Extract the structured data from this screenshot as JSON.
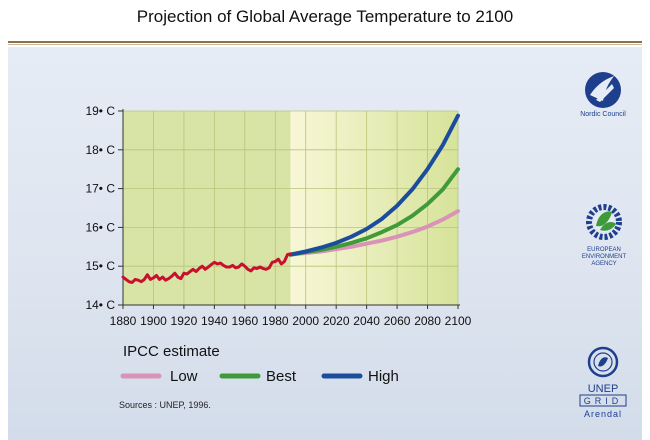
{
  "title": "Projection of Global Average Temperature to 2100",
  "logos": {
    "nordic": {
      "text": "Nordic Council",
      "icon": "nordic-council-swan-icon"
    },
    "eea": {
      "lines": [
        "EUROPEAN",
        "ENVIRONMENT",
        "AGENCY"
      ],
      "icon": "eea-gear-leaf-icon"
    },
    "unep": {
      "line1": "UNEP",
      "line2": "GRID",
      "line3": "Arendal",
      "icon": "un-wreath-icon"
    }
  },
  "colors": {
    "observed": "#c8102e",
    "low": "#d993b9",
    "best": "#3f9a3a",
    "high": "#1c4d9c",
    "plot_bg_history": "#d8e3a6",
    "plot_bg_future_start": "#f8f7d6",
    "plot_bg_future_end": "#d6e39a"
  },
  "chart_data": {
    "type": "line",
    "xlim": [
      1880,
      2100
    ],
    "ylim": [
      14,
      19
    ],
    "x_ticks": [
      1880,
      1900,
      1920,
      1940,
      1960,
      1980,
      2000,
      2020,
      2040,
      2060,
      2080,
      2100
    ],
    "x_tick_labels": [
      "1880",
      "1900",
      "1920",
      "1940",
      "1960",
      "1980",
      "2000",
      "2020",
      "2040",
      "2060",
      "2080",
      "2100"
    ],
    "y_ticks": [
      14,
      15,
      16,
      17,
      18,
      19
    ],
    "y_tick_labels": [
      "14• C",
      "15• C",
      "16• C",
      "17• C",
      "18• C",
      "19• C"
    ],
    "grid": true,
    "observed": {
      "x": [
        1880,
        1882,
        1884,
        1886,
        1888,
        1890,
        1892,
        1894,
        1896,
        1898,
        1900,
        1902,
        1904,
        1906,
        1908,
        1910,
        1912,
        1914,
        1916,
        1918,
        1920,
        1922,
        1924,
        1926,
        1928,
        1930,
        1932,
        1934,
        1936,
        1938,
        1940,
        1942,
        1944,
        1946,
        1948,
        1950,
        1952,
        1954,
        1956,
        1958,
        1960,
        1962,
        1964,
        1966,
        1968,
        1970,
        1972,
        1974,
        1976,
        1978,
        1980,
        1982,
        1984,
        1986,
        1988,
        1990
      ],
      "y": [
        14.72,
        14.66,
        14.6,
        14.58,
        14.66,
        14.64,
        14.6,
        14.66,
        14.78,
        14.66,
        14.7,
        14.76,
        14.66,
        14.72,
        14.64,
        14.68,
        14.74,
        14.82,
        14.72,
        14.68,
        14.82,
        14.8,
        14.86,
        14.92,
        14.86,
        14.94,
        15.0,
        14.92,
        14.98,
        15.04,
        15.1,
        15.06,
        15.08,
        15.02,
        14.98,
        14.98,
        15.02,
        14.96,
        14.98,
        15.06,
        15.0,
        14.92,
        14.88,
        14.96,
        14.94,
        14.98,
        14.94,
        14.92,
        14.96,
        15.1,
        15.12,
        15.18,
        15.06,
        15.12,
        15.3,
        15.32
      ]
    },
    "series": [
      {
        "name": "Low",
        "x": [
          1990,
          2000,
          2010,
          2020,
          2030,
          2040,
          2050,
          2060,
          2070,
          2080,
          2090,
          2100
        ],
        "y": [
          15.3,
          15.34,
          15.38,
          15.44,
          15.5,
          15.58,
          15.66,
          15.76,
          15.88,
          16.02,
          16.2,
          16.42
        ]
      },
      {
        "name": "Best",
        "x": [
          1990,
          2000,
          2010,
          2020,
          2030,
          2040,
          2050,
          2060,
          2070,
          2080,
          2090,
          2100
        ],
        "y": [
          15.3,
          15.36,
          15.42,
          15.5,
          15.6,
          15.72,
          15.88,
          16.06,
          16.3,
          16.6,
          16.98,
          17.5
        ]
      },
      {
        "name": "High",
        "x": [
          1990,
          2000,
          2010,
          2020,
          2030,
          2040,
          2050,
          2060,
          2070,
          2080,
          2090,
          2100
        ],
        "y": [
          15.3,
          15.38,
          15.48,
          15.6,
          15.76,
          15.96,
          16.22,
          16.56,
          16.98,
          17.5,
          18.12,
          18.88
        ]
      }
    ],
    "legend": {
      "title": "IPCC estimate",
      "entries": [
        "Low",
        "Best",
        "High"
      ],
      "position": "bottom-left"
    },
    "source": "Sources : UNEP, 1996."
  }
}
